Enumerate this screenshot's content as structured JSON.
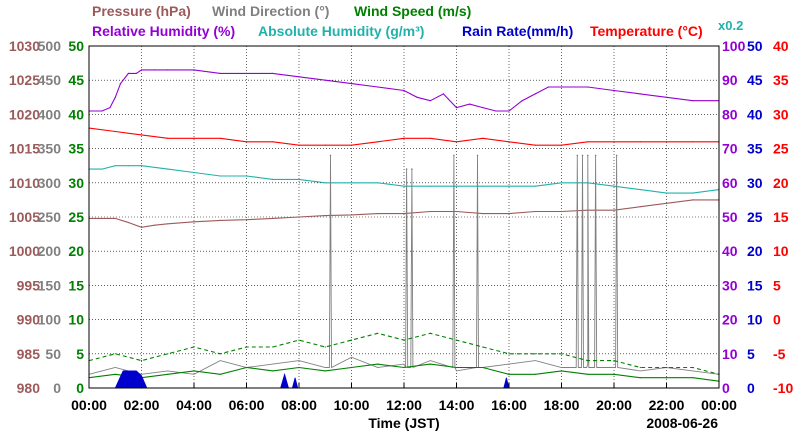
{
  "chart_data": {
    "type": "line",
    "date": "2008-06-26",
    "xlabel": "Time (JST)",
    "x_range_hours": [
      0,
      24
    ],
    "x_ticks": [
      "00:00",
      "02:00",
      "04:00",
      "06:00",
      "08:00",
      "10:00",
      "12:00",
      "14:00",
      "16:00",
      "18:00",
      "20:00",
      "22:00",
      "00:00"
    ],
    "grid": true,
    "legend": [
      {
        "key": "pressure",
        "label": "Pressure (hPa)",
        "color": "#9c5a5a"
      },
      {
        "key": "wind_dir",
        "label": "Wind Direction (°)",
        "color": "#808080"
      },
      {
        "key": "wind_speed",
        "label": "Wind Speed (m/s)",
        "color": "#008000"
      },
      {
        "key": "rh",
        "label": "Relative Humidity (%)",
        "color": "#9400d3"
      },
      {
        "key": "ah",
        "label": "Absolute Humidity (g/m³)",
        "color": "#20b2aa"
      },
      {
        "key": "ah_scale",
        "label": "x0.2",
        "color": "#20b2aa"
      },
      {
        "key": "rain",
        "label": "Rain Rate(mm/h)",
        "color": "#0000cd"
      },
      {
        "key": "temp",
        "label": "Temperature (°C)",
        "color": "#ff0000"
      }
    ],
    "axes": {
      "pressure": {
        "side": "left",
        "color": "#9c5a5a",
        "range": [
          980,
          1030
        ],
        "ticks": [
          "1030",
          "1025",
          "1020",
          "1015",
          "1010",
          "1005",
          "1000",
          "995",
          "990",
          "985",
          "980"
        ]
      },
      "wind_dir": {
        "side": "left",
        "color": "#808080",
        "range": [
          0,
          500
        ],
        "ticks": [
          "500",
          "450",
          "400",
          "350",
          "300",
          "250",
          "200",
          "150",
          "100",
          "50",
          "0"
        ]
      },
      "wind_speed": {
        "side": "left",
        "color": "#008000",
        "range": [
          0,
          50
        ],
        "ticks": [
          "50",
          "45",
          "40",
          "35",
          "30",
          "25",
          "20",
          "15",
          "10",
          "5",
          "0"
        ]
      },
      "rh": {
        "side": "right",
        "color": "#9400d3",
        "range": [
          0,
          100
        ],
        "ticks": [
          "100",
          "90",
          "80",
          "70",
          "60",
          "50",
          "40",
          "30",
          "20",
          "10",
          "0"
        ]
      },
      "rain": {
        "side": "right",
        "color": "#0000cd",
        "range": [
          0,
          50
        ],
        "ticks": [
          "50",
          "45",
          "40",
          "35",
          "30",
          "25",
          "20",
          "15",
          "10",
          "5",
          "0"
        ]
      },
      "temp": {
        "side": "right",
        "color": "#ff0000",
        "range": [
          -10,
          40
        ],
        "ticks": [
          "40",
          "35",
          "30",
          "25",
          "20",
          "15",
          "10",
          "5",
          "0",
          "-5",
          "-10"
        ]
      }
    },
    "series": [
      {
        "name": "Relative Humidity (%)",
        "axis": "rh",
        "color": "#9400d3",
        "x": [
          0,
          0.5,
          0.8,
          1,
          1.2,
          1.5,
          1.8,
          2,
          2.5,
          3,
          4,
          5,
          6,
          7,
          8,
          9,
          10,
          11,
          12,
          12.5,
          13,
          13.5,
          14,
          14.5,
          15,
          15.5,
          16,
          16.5,
          17,
          17.5,
          18,
          19,
          20,
          21,
          22,
          23,
          24
        ],
        "y": [
          81,
          81,
          82,
          85,
          89,
          92,
          92,
          93,
          93,
          93,
          93,
          92,
          92,
          92,
          91,
          90,
          89,
          88,
          87,
          85,
          84,
          86,
          82,
          83,
          82,
          81,
          81,
          84,
          86,
          88,
          88,
          88,
          87,
          86,
          85,
          84,
          84
        ]
      },
      {
        "name": "Absolute Humidity x0.2",
        "axis": "rh",
        "color": "#20b2aa",
        "x": [
          0,
          0.5,
          1,
          1.5,
          2,
          3,
          4,
          5,
          6,
          7,
          8,
          9,
          10,
          11,
          12,
          13,
          14,
          15,
          16,
          17,
          18,
          19,
          20,
          21,
          22,
          23,
          24
        ],
        "y": [
          64,
          64,
          65,
          65,
          65,
          64,
          63,
          62,
          62,
          61,
          61,
          60,
          60,
          60,
          59,
          59,
          59,
          59,
          59,
          59,
          60,
          60,
          59,
          58,
          57,
          57,
          58
        ]
      },
      {
        "name": "Temperature (°C)",
        "axis": "temp",
        "color": "#ff0000",
        "x": [
          0,
          1,
          2,
          3,
          4,
          5,
          6,
          7,
          8,
          9,
          10,
          11,
          12,
          13,
          14,
          15,
          16,
          17,
          18,
          19,
          20,
          21,
          22,
          23,
          24
        ],
        "y": [
          28,
          27.5,
          27,
          26.5,
          26.5,
          26.5,
          26,
          26,
          25.5,
          25.5,
          25.5,
          26,
          26.5,
          26.5,
          26,
          26.5,
          26,
          25.5,
          25.5,
          26,
          26,
          26,
          26,
          26,
          26
        ]
      },
      {
        "name": "Pressure (hPa)",
        "axis": "pressure",
        "color": "#9c5a5a",
        "x": [
          0,
          1,
          1.5,
          2,
          2.5,
          3,
          4,
          5,
          6,
          7,
          8,
          9,
          10,
          11,
          12,
          13,
          14,
          15,
          16,
          17,
          18,
          19,
          20,
          21,
          22,
          23,
          24
        ],
        "y": [
          1004.8,
          1004.8,
          1004.2,
          1003.5,
          1003.8,
          1004,
          1004.3,
          1004.5,
          1004.6,
          1004.8,
          1005,
          1005.2,
          1005.3,
          1005.5,
          1005.5,
          1005.8,
          1005.8,
          1005.5,
          1005.5,
          1005.8,
          1005.8,
          1006,
          1006,
          1006.5,
          1007,
          1007.5,
          1007.5
        ]
      },
      {
        "name": "Wind Direction (°)",
        "axis": "wind_dir",
        "color": "#808080",
        "base_x": [
          0,
          1,
          2,
          3,
          4,
          5,
          6,
          7,
          8,
          9,
          10,
          11,
          12,
          13,
          14,
          15,
          16,
          17,
          18,
          19,
          20,
          21,
          22,
          23,
          24
        ],
        "base_y": [
          20,
          30,
          20,
          25,
          20,
          40,
          30,
          35,
          40,
          30,
          45,
          30,
          35,
          40,
          25,
          30,
          35,
          40,
          30,
          35,
          30,
          25,
          30,
          25,
          20
        ],
        "spikes_x": [
          9.2,
          12.1,
          12.3,
          13.9,
          14.8,
          18.6,
          18.8,
          19.0,
          19.3,
          20.1
        ],
        "spikes_y": [
          340,
          320,
          320,
          340,
          340,
          340,
          340,
          340,
          340,
          340
        ]
      },
      {
        "name": "Wind Speed (m/s)",
        "axis": "wind_speed",
        "color": "#008000",
        "x": [
          0,
          1,
          2,
          3,
          4,
          5,
          6,
          7,
          8,
          9,
          10,
          11,
          12,
          13,
          14,
          15,
          16,
          17,
          18,
          19,
          20,
          21,
          22,
          23,
          24
        ],
        "y": [
          1.5,
          2,
          1.5,
          2,
          2.5,
          2,
          3,
          2.5,
          3,
          2.5,
          3,
          3.5,
          3,
          3.5,
          3,
          3,
          2,
          2,
          2.5,
          2,
          2,
          1.5,
          1.5,
          1.5,
          1
        ]
      },
      {
        "name": "Wind Speed gust (m/s)",
        "axis": "wind_speed",
        "color": "#008000",
        "dashed": true,
        "x": [
          0,
          1,
          2,
          3,
          4,
          5,
          6,
          7,
          8,
          9,
          10,
          11,
          12,
          13,
          14,
          15,
          16,
          17,
          18,
          19,
          20,
          21,
          22,
          23,
          24
        ],
        "y": [
          4,
          5,
          4,
          5,
          6,
          5,
          6,
          6,
          7,
          6,
          7,
          8,
          7,
          8,
          7,
          6,
          5,
          5,
          5,
          4,
          4,
          3,
          3,
          3,
          2
        ]
      },
      {
        "name": "Rain Rate (mm/h)",
        "axis": "rain",
        "color": "#0000cd",
        "fill": true,
        "events": [
          {
            "x": [
              1.0,
              1.3,
              1.8,
              2.0,
              2.2
            ],
            "y": [
              0,
              2.5,
              2.5,
              1.8,
              0
            ]
          },
          {
            "x": [
              7.3,
              7.45,
              7.6
            ],
            "y": [
              0,
              2,
              0
            ]
          },
          {
            "x": [
              7.75,
              7.85,
              7.95
            ],
            "y": [
              0,
              1.5,
              0
            ]
          },
          {
            "x": [
              15.8,
              15.9,
              16.0
            ],
            "y": [
              0,
              1.5,
              0
            ]
          }
        ]
      }
    ]
  }
}
